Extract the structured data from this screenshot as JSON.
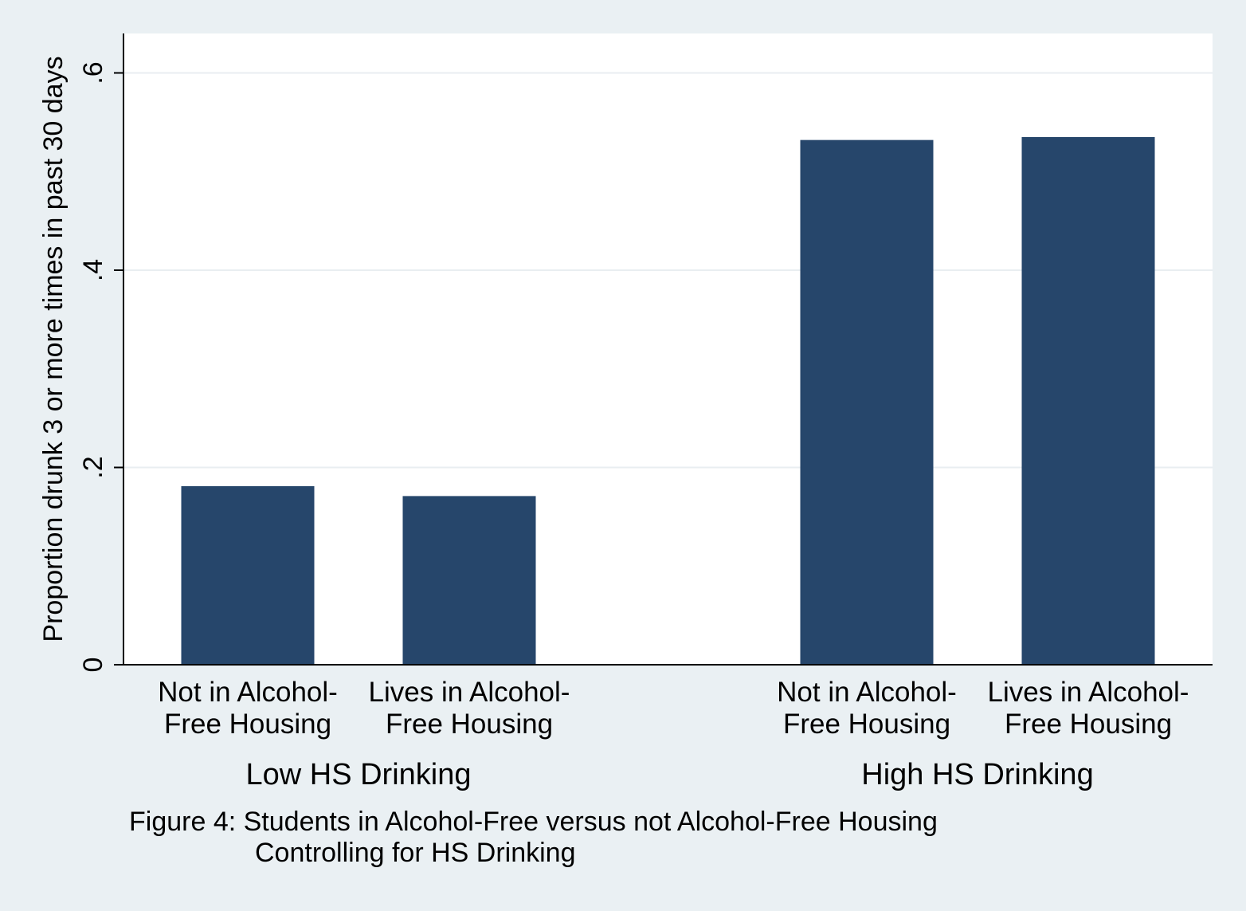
{
  "chart_data": {
    "type": "bar",
    "ylabel": "Proportion drunk 3 or more times in past 30 days",
    "ylim": [
      0,
      0.64
    ],
    "yticks": [
      {
        "value": 0,
        "label": "0"
      },
      {
        "value": 0.2,
        "label": ".2"
      },
      {
        "value": 0.4,
        "label": ".4"
      },
      {
        "value": 0.6,
        "label": ".6"
      }
    ],
    "grid": true,
    "bar_color": "#26466b",
    "plot_background": "#ffffff",
    "groups": [
      {
        "name": "Low HS Drinking",
        "bars": [
          {
            "label_lines": [
              "Not in Alcohol-",
              "Free Housing"
            ],
            "value": 0.181
          },
          {
            "label_lines": [
              "Lives in Alcohol-",
              "Free Housing"
            ],
            "value": 0.171
          }
        ]
      },
      {
        "name": "High HS Drinking",
        "bars": [
          {
            "label_lines": [
              "Not in Alcohol-",
              "Free Housing"
            ],
            "value": 0.532
          },
          {
            "label_lines": [
              "Lives in Alcohol-",
              "Free Housing"
            ],
            "value": 0.535
          }
        ]
      }
    ],
    "caption_lines": [
      "Figure 4: Students in Alcohol-Free versus not Alcohol-Free Housing",
      "Controlling for HS Drinking"
    ]
  }
}
